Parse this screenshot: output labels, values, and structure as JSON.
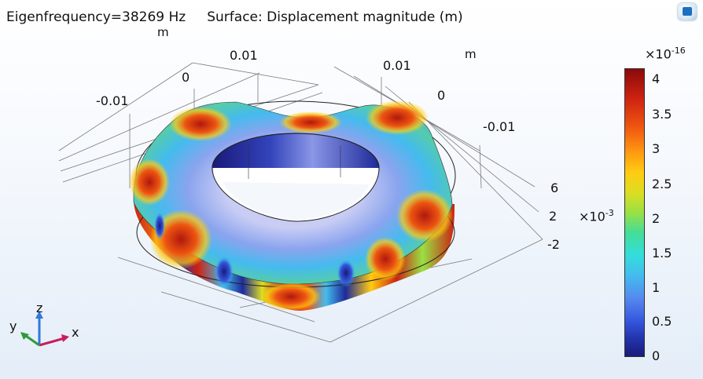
{
  "header": {
    "eigenfrequency": "Eigenfrequency=38269 Hz",
    "surface": "Surface: Displacement magnitude (m)"
  },
  "axes": {
    "top_unit_left": "m",
    "top_unit_right": "m",
    "x_ticks": [
      "-0.01",
      "0",
      "0.01"
    ],
    "y_ticks": [
      "0.01",
      "0",
      "-0.01"
    ],
    "z_ticks": [
      "6",
      "2",
      "-2"
    ],
    "z_scale": "×10",
    "z_scale_exp": "-3",
    "triad": {
      "x": "x",
      "y": "y",
      "z": "z"
    }
  },
  "colorbar": {
    "multiplier": "×10",
    "multiplier_exp": "-16",
    "ticks": [
      "4",
      "3.5",
      "3",
      "2.5",
      "2",
      "1.5",
      "1",
      "0.5",
      "0"
    ]
  },
  "colors": {
    "background_top": "#ffffff",
    "background_bottom": "#e4edf8",
    "max": "#8a0a0a",
    "min": "#1a1a7a",
    "triad_x": "#c81e5a",
    "triad_y": "#2e9a3a",
    "triad_z": "#2f7ad8"
  }
}
